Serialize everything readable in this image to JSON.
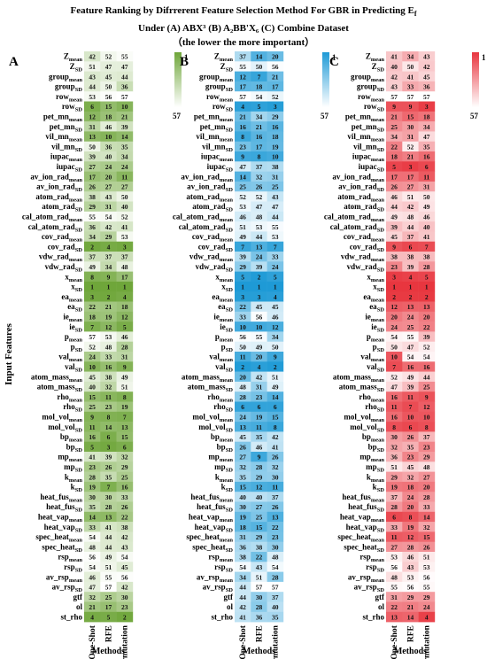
{
  "title": {
    "line1": "Feature Ranking by Difrrerent Feature Selection Method For GBR in Predicting E",
    "line1_sub": "f",
    "line2": "Under (A) ABX³ (B) A₂BB'X₆ (C) Combine Dataset",
    "line3": "（the lower the more important）"
  },
  "y_label": "Input Features",
  "x_label": "Methods",
  "methods": [
    "One-Shot",
    "RFE",
    "Permutation"
  ],
  "features": [
    {
      "base": "Z",
      "sub": "mean"
    },
    {
      "base": "Z",
      "sub": "SD"
    },
    {
      "base": "group",
      "sub": "mean"
    },
    {
      "base": "group",
      "sub": "SD"
    },
    {
      "base": "row",
      "sub": "mean"
    },
    {
      "base": "row",
      "sub": "SD"
    },
    {
      "base": "pet_mn",
      "sub": "mean"
    },
    {
      "base": "pet_mn",
      "sub": "SD"
    },
    {
      "base": "vil_mn",
      "sub": "mean"
    },
    {
      "base": "vil_mn",
      "sub": "SD"
    },
    {
      "base": "iupac",
      "sub": "mean"
    },
    {
      "base": "iupac",
      "sub": "SD"
    },
    {
      "base": "av_ion_rad",
      "sub": "mean"
    },
    {
      "base": "av_ion_rad",
      "sub": "SD"
    },
    {
      "base": "atom_rad",
      "sub": "mean"
    },
    {
      "base": "atom_rad",
      "sub": "SD"
    },
    {
      "base": "cal_atom_rad",
      "sub": "mean"
    },
    {
      "base": "cal_atom_rad",
      "sub": "SD"
    },
    {
      "base": "cov_rad",
      "sub": "mean"
    },
    {
      "base": "cov_rad",
      "sub": "SD"
    },
    {
      "base": "vdw_rad",
      "sub": "mean"
    },
    {
      "base": "vdw_rad",
      "sub": "SD"
    },
    {
      "base": "x",
      "sub": "mean"
    },
    {
      "base": "x",
      "sub": "SD"
    },
    {
      "base": "ea",
      "sub": "mean"
    },
    {
      "base": "ea",
      "sub": "SD"
    },
    {
      "base": "ie",
      "sub": "mean"
    },
    {
      "base": "ie",
      "sub": "SD"
    },
    {
      "base": "p",
      "sub": "mean"
    },
    {
      "base": "p",
      "sub": "SD"
    },
    {
      "base": "val",
      "sub": "mean"
    },
    {
      "base": "val",
      "sub": "SD"
    },
    {
      "base": "atom_mass",
      "sub": "mean"
    },
    {
      "base": "atom_mass",
      "sub": "SD"
    },
    {
      "base": "rho",
      "sub": "mean"
    },
    {
      "base": "rho",
      "sub": "SD"
    },
    {
      "base": "mol_vol",
      "sub": "mean"
    },
    {
      "base": "mol_vol",
      "sub": "SD"
    },
    {
      "base": "bp",
      "sub": "mean"
    },
    {
      "base": "bp",
      "sub": "SD"
    },
    {
      "base": "mp",
      "sub": "mean"
    },
    {
      "base": "mp",
      "sub": "SD"
    },
    {
      "base": "k",
      "sub": "mean"
    },
    {
      "base": "k",
      "sub": "SD"
    },
    {
      "base": "heat_fus",
      "sub": "mean"
    },
    {
      "base": "heat_fus",
      "sub": "SD"
    },
    {
      "base": "heat_vap",
      "sub": "mean"
    },
    {
      "base": "heat_vap",
      "sub": "SD"
    },
    {
      "base": "spec_heat",
      "sub": "mean"
    },
    {
      "base": "spec_heat",
      "sub": "SD"
    },
    {
      "base": "rsp",
      "sub": "mean"
    },
    {
      "base": "rsp",
      "sub": "SD"
    },
    {
      "base": "av_rsp",
      "sub": "mean"
    },
    {
      "base": "av_rsp",
      "sub": "SD"
    },
    {
      "base": "gtf",
      "sub": ""
    },
    {
      "base": "ol",
      "sub": ""
    },
    {
      "base": "st_rho",
      "sub": ""
    }
  ],
  "chart_data": [
    {
      "type": "heatmap",
      "panel": "A",
      "color": "#6fa63a",
      "colorbar": {
        "min": 1,
        "max": 57
      },
      "values": [
        [
          42,
          52,
          55
        ],
        [
          51,
          47,
          47
        ],
        [
          43,
          45,
          44
        ],
        [
          44,
          50,
          36
        ],
        [
          53,
          56,
          57
        ],
        [
          6,
          15,
          10
        ],
        [
          12,
          18,
          21
        ],
        [
          31,
          46,
          39
        ],
        [
          13,
          10,
          14
        ],
        [
          50,
          36,
          35
        ],
        [
          39,
          40,
          34
        ],
        [
          27,
          24,
          24
        ],
        [
          17,
          20,
          11
        ],
        [
          26,
          27,
          27
        ],
        [
          38,
          43,
          50
        ],
        [
          29,
          31,
          40
        ],
        [
          55,
          54,
          52
        ],
        [
          36,
          42,
          41
        ],
        [
          34,
          29,
          53
        ],
        [
          2,
          4,
          3
        ],
        [
          37,
          37,
          37
        ],
        [
          49,
          34,
          48
        ],
        [
          8,
          9,
          17
        ],
        [
          1,
          1,
          1
        ],
        [
          3,
          2,
          4
        ],
        [
          22,
          21,
          18
        ],
        [
          18,
          19,
          12
        ],
        [
          7,
          12,
          5
        ],
        [
          57,
          53,
          46
        ],
        [
          52,
          48,
          28
        ],
        [
          24,
          33,
          31
        ],
        [
          10,
          16,
          9
        ],
        [
          45,
          38,
          49
        ],
        [
          40,
          32,
          51
        ],
        [
          15,
          11,
          8
        ],
        [
          25,
          23,
          19
        ],
        [
          9,
          8,
          7
        ],
        [
          11,
          14,
          13
        ],
        [
          16,
          6,
          15
        ],
        [
          5,
          3,
          6
        ],
        [
          41,
          39,
          32
        ],
        [
          23,
          26,
          29
        ],
        [
          28,
          35,
          25
        ],
        [
          19,
          7,
          16
        ],
        [
          30,
          30,
          33
        ],
        [
          35,
          28,
          26
        ],
        [
          14,
          13,
          22
        ],
        [
          33,
          41,
          38
        ],
        [
          54,
          44,
          42
        ],
        [
          48,
          44,
          43
        ],
        [
          56,
          49,
          54
        ],
        [
          54,
          51,
          45
        ],
        [
          46,
          55,
          56
        ],
        [
          47,
          57,
          42
        ],
        [
          32,
          25,
          30
        ],
        [
          21,
          17,
          23
        ],
        [
          4,
          5,
          2
        ]
      ]
    },
    {
      "type": "heatmap",
      "panel": "B",
      "color": "#1e9ad6",
      "colorbar": {
        "min": 1,
        "max": 57
      },
      "values": [
        [
          37,
          14,
          20
        ],
        [
          55,
          50,
          56
        ],
        [
          12,
          7,
          21
        ],
        [
          17,
          18,
          17
        ],
        [
          57,
          54,
          52
        ],
        [
          4,
          5,
          3
        ],
        [
          21,
          34,
          29
        ],
        [
          16,
          21,
          16
        ],
        [
          8,
          16,
          18
        ],
        [
          23,
          17,
          19
        ],
        [
          9,
          8,
          10
        ],
        [
          47,
          37,
          38
        ],
        [
          14,
          32,
          31
        ],
        [
          25,
          26,
          25
        ],
        [
          52,
          52,
          43
        ],
        [
          53,
          47,
          47
        ],
        [
          46,
          48,
          44
        ],
        [
          51,
          53,
          55
        ],
        [
          49,
          44,
          53
        ],
        [
          7,
          13,
          7
        ],
        [
          39,
          24,
          33
        ],
        [
          29,
          39,
          24
        ],
        [
          5,
          2,
          5
        ],
        [
          1,
          1,
          1
        ],
        [
          3,
          3,
          4
        ],
        [
          22,
          45,
          45
        ],
        [
          33,
          56,
          46
        ],
        [
          10,
          10,
          12
        ],
        [
          56,
          55,
          34
        ],
        [
          50,
          49,
          50
        ],
        [
          11,
          20,
          9
        ],
        [
          2,
          4,
          2
        ],
        [
          20,
          42,
          51
        ],
        [
          48,
          31,
          49
        ],
        [
          28,
          23,
          14
        ],
        [
          6,
          6,
          6
        ],
        [
          24,
          19,
          15
        ],
        [
          13,
          11,
          8
        ],
        [
          45,
          35,
          42
        ],
        [
          26,
          46,
          41
        ],
        [
          27,
          9,
          26
        ],
        [
          32,
          28,
          32
        ],
        [
          35,
          29,
          30
        ],
        [
          15,
          12,
          11
        ],
        [
          40,
          40,
          37
        ],
        [
          30,
          27,
          26
        ],
        [
          19,
          25,
          13
        ],
        [
          18,
          15,
          22
        ],
        [
          31,
          29,
          23
        ],
        [
          36,
          38,
          30
        ],
        [
          38,
          22,
          48
        ],
        [
          54,
          43,
          54
        ],
        [
          34,
          51,
          28
        ],
        [
          44,
          57,
          57
        ],
        [
          44,
          30,
          37
        ],
        [
          42,
          28,
          40
        ],
        [
          41,
          36,
          35
        ]
      ]
    },
    {
      "type": "heatmap",
      "panel": "C",
      "color": "#e8363f",
      "colorbar": {
        "min": 1,
        "max": 57
      },
      "values": [
        [
          41,
          34,
          43
        ],
        [
          40,
          50,
          42
        ],
        [
          42,
          41,
          45
        ],
        [
          43,
          33,
          36
        ],
        [
          57,
          57,
          57
        ],
        [
          9,
          9,
          3
        ],
        [
          21,
          15,
          18
        ],
        [
          25,
          30,
          34
        ],
        [
          34,
          31,
          47
        ],
        [
          22,
          52,
          35
        ],
        [
          18,
          21,
          16
        ],
        [
          5,
          3,
          6
        ],
        [
          17,
          17,
          11
        ],
        [
          26,
          27,
          31
        ],
        [
          46,
          51,
          50
        ],
        [
          44,
          42,
          49
        ],
        [
          49,
          48,
          46
        ],
        [
          39,
          44,
          40
        ],
        [
          45,
          37,
          41
        ],
        [
          9,
          6,
          7
        ],
        [
          38,
          38,
          38
        ],
        [
          23,
          39,
          28
        ],
        [
          3,
          4,
          5
        ],
        [
          1,
          1,
          1
        ],
        [
          2,
          2,
          2
        ],
        [
          12,
          13,
          13
        ],
        [
          20,
          24,
          20
        ],
        [
          24,
          25,
          22
        ],
        [
          54,
          55,
          39
        ],
        [
          50,
          47,
          52
        ],
        [
          10,
          54,
          54
        ],
        [
          7,
          16,
          16
        ],
        [
          52,
          49,
          44
        ],
        [
          47,
          39,
          25
        ],
        [
          16,
          11,
          9
        ],
        [
          11,
          7,
          12
        ],
        [
          16,
          10,
          10
        ],
        [
          8,
          6,
          8
        ],
        [
          30,
          26,
          37
        ],
        [
          32,
          35,
          23
        ],
        [
          36,
          23,
          29
        ],
        [
          51,
          45,
          48
        ],
        [
          29,
          32,
          27
        ],
        [
          19,
          18,
          20
        ],
        [
          37,
          24,
          28
        ],
        [
          28,
          20,
          33
        ],
        [
          6,
          8,
          14
        ],
        [
          33,
          19,
          32
        ],
        [
          11,
          12,
          15
        ],
        [
          27,
          28,
          26
        ],
        [
          53,
          46,
          51
        ],
        [
          56,
          43,
          53
        ],
        [
          48,
          53,
          56
        ],
        [
          55,
          56,
          55
        ],
        [
          31,
          29,
          29
        ],
        [
          22,
          21,
          24
        ],
        [
          13,
          14,
          4
        ]
      ]
    }
  ]
}
